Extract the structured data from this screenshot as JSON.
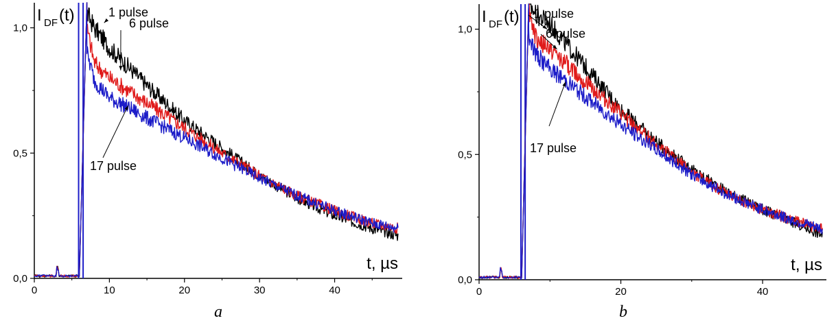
{
  "chart_data": [
    {
      "panel": "a",
      "type": "line",
      "ylabel_main": "I",
      "ylabel_sub": "DF",
      "ylabel_tail": "(t)",
      "xlabel": "t,  µs",
      "xlim": [
        0,
        49
      ],
      "ylim": [
        0,
        1.1
      ],
      "x_ticks": [
        "0",
        "10",
        "20",
        "30",
        "40"
      ],
      "y_ticks": [
        "0,0",
        "0,5",
        "1,0"
      ],
      "x_tick_values": [
        0,
        10,
        20,
        30,
        40
      ],
      "y_tick_values": [
        0,
        0.5,
        1.0
      ],
      "grid": false,
      "series": [
        {
          "name": "1 pulse",
          "color": "#000000",
          "points": [
            [
              7,
              1.06
            ],
            [
              8,
              1.0
            ],
            [
              10,
              0.92
            ],
            [
              12,
              0.86
            ],
            [
              15,
              0.77
            ],
            [
              20,
              0.63
            ],
            [
              25,
              0.52
            ],
            [
              30,
              0.41
            ],
            [
              35,
              0.32
            ],
            [
              40,
              0.25
            ],
            [
              45,
              0.2
            ],
            [
              48.5,
              0.17
            ]
          ]
        },
        {
          "name": "6 pulse",
          "color": "#e01b1b",
          "points": [
            [
              7,
              1.0
            ],
            [
              8,
              0.86
            ],
            [
              10,
              0.8
            ],
            [
              12,
              0.76
            ],
            [
              15,
              0.7
            ],
            [
              20,
              0.6
            ],
            [
              25,
              0.5
            ],
            [
              30,
              0.41
            ],
            [
              35,
              0.33
            ],
            [
              40,
              0.27
            ],
            [
              45,
              0.22
            ],
            [
              48.5,
              0.2
            ]
          ]
        },
        {
          "name": "17 pulse",
          "color": "#1c1cc8",
          "points": [
            [
              7,
              0.9
            ],
            [
              8,
              0.79
            ],
            [
              10,
              0.72
            ],
            [
              12,
              0.69
            ],
            [
              15,
              0.64
            ],
            [
              20,
              0.56
            ],
            [
              25,
              0.48
            ],
            [
              30,
              0.4
            ],
            [
              35,
              0.33
            ],
            [
              40,
              0.27
            ],
            [
              45,
              0.22
            ],
            [
              48.5,
              0.2
            ]
          ]
        }
      ],
      "annotations": [
        {
          "text": "1 pulse",
          "series": "1 pulse"
        },
        {
          "text": "6 pulse",
          "series": "6 pulse"
        },
        {
          "text": "17 pulse",
          "series": "17 pulse"
        }
      ]
    },
    {
      "panel": "b",
      "type": "line",
      "ylabel_main": "I",
      "ylabel_sub": "DF",
      "ylabel_tail": "(t)",
      "xlabel": "t,  µs",
      "xlim": [
        0,
        49
      ],
      "ylim": [
        0,
        1.1
      ],
      "x_ticks": [
        "0",
        "20",
        "40"
      ],
      "y_ticks": [
        "0,0",
        "0,5",
        "1,0"
      ],
      "x_tick_values": [
        0,
        20,
        40
      ],
      "y_tick_values": [
        0,
        0.5,
        1.0
      ],
      "grid": false,
      "series": [
        {
          "name": "1 pulse",
          "color": "#000000",
          "points": [
            [
              7,
              1.1
            ],
            [
              8,
              1.06
            ],
            [
              10,
              1.02
            ],
            [
              12,
              0.95
            ],
            [
              15,
              0.85
            ],
            [
              20,
              0.68
            ],
            [
              25,
              0.55
            ],
            [
              30,
              0.44
            ],
            [
              35,
              0.35
            ],
            [
              40,
              0.28
            ],
            [
              45,
              0.22
            ],
            [
              48.5,
              0.18
            ]
          ]
        },
        {
          "name": "6 pulse",
          "color": "#e01b1b",
          "points": [
            [
              7,
              1.08
            ],
            [
              8,
              0.96
            ],
            [
              10,
              0.92
            ],
            [
              12,
              0.87
            ],
            [
              15,
              0.79
            ],
            [
              20,
              0.66
            ],
            [
              25,
              0.54
            ],
            [
              30,
              0.43
            ],
            [
              35,
              0.34
            ],
            [
              40,
              0.28
            ],
            [
              45,
              0.23
            ],
            [
              48.5,
              0.2
            ]
          ]
        },
        {
          "name": "17 pulse",
          "color": "#1c1cc8",
          "points": [
            [
              7,
              0.98
            ],
            [
              8,
              0.9
            ],
            [
              10,
              0.84
            ],
            [
              12,
              0.8
            ],
            [
              15,
              0.73
            ],
            [
              20,
              0.62
            ],
            [
              25,
              0.52
            ],
            [
              30,
              0.42
            ],
            [
              35,
              0.34
            ],
            [
              40,
              0.28
            ],
            [
              45,
              0.23
            ],
            [
              48.5,
              0.2
            ]
          ]
        }
      ],
      "annotations": [
        {
          "text": "1 pulse",
          "series": "1 pulse"
        },
        {
          "text": "6 pulse",
          "series": "6 pulse"
        },
        {
          "text": "17 pulse",
          "series": "17 pulse"
        }
      ]
    }
  ]
}
